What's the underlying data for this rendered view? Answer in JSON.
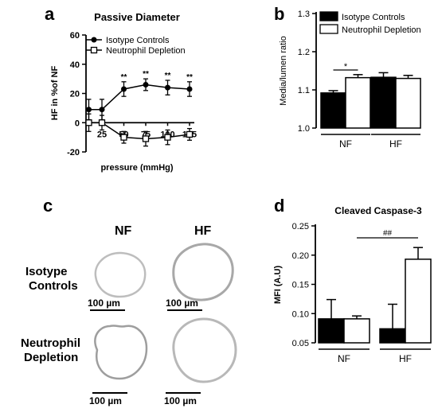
{
  "panel_letters": {
    "a": "a",
    "b": "b",
    "c": "c",
    "d": "d"
  },
  "chart_data": [
    {
      "type": "line",
      "title": "Passive Diameter",
      "xlabel": "pressure (mmHg)",
      "ylabel": "HF in %of NF",
      "x": [
        10,
        25,
        50,
        75,
        100,
        125
      ],
      "x_ticks": [
        "25",
        "50",
        "75",
        "100",
        "125"
      ],
      "ylim": [
        -20,
        60
      ],
      "y_ticks": [
        "-20",
        "0",
        "20",
        "40",
        "60"
      ],
      "legend_position": "top-left",
      "significance_label": "**",
      "series": [
        {
          "name": "Isotype Controls",
          "marker": "filled-circle",
          "values": [
            9,
            9,
            23,
            26,
            24,
            23
          ],
          "errors": [
            7,
            7,
            5,
            4,
            5,
            5
          ],
          "significance": [
            "",
            "",
            "**",
            "**",
            "**",
            "**"
          ]
        },
        {
          "name": "Neutrophil Depletion",
          "marker": "open-square",
          "values": [
            0,
            0,
            -10,
            -11,
            -10,
            -8
          ],
          "errors": [
            6,
            5,
            4,
            5,
            5,
            4
          ]
        }
      ]
    },
    {
      "type": "bar",
      "ylabel": "Media/lumen ratio",
      "categories": [
        "NF",
        "HF"
      ],
      "ylim": [
        1.0,
        1.3
      ],
      "y_ticks": [
        "1.0",
        "1.1",
        "1.2",
        "1.3"
      ],
      "legend_position": "top-right",
      "series": [
        {
          "name": "Isotype Controls",
          "color": "#000000",
          "values": [
            1.092,
            1.133
          ],
          "errors": [
            0.006,
            0.012
          ]
        },
        {
          "name": "Neutrophil Depletion",
          "color": "#ffffff",
          "values": [
            1.132,
            1.13
          ],
          "errors": [
            0.008,
            0.008
          ]
        }
      ],
      "annotations": [
        {
          "text": "*"
        }
      ]
    },
    {
      "type": "bar",
      "title": "Cleaved Caspase-3",
      "ylabel": "MFI (A.U)",
      "categories": [
        "NF",
        "HF"
      ],
      "ylim": [
        0.05,
        0.25
      ],
      "y_ticks": [
        "0.05",
        "0.10",
        "0.15",
        "0.20",
        "0.25"
      ],
      "series": [
        {
          "name": "Isotype Controls",
          "color": "#000000",
          "values": [
            0.091,
            0.074
          ],
          "errors": [
            0.033,
            0.042
          ]
        },
        {
          "name": "Neutrophil Depletion",
          "color": "#ffffff",
          "values": [
            0.091,
            0.193
          ],
          "errors": [
            0.005,
            0.02
          ]
        }
      ],
      "annotations": [
        {
          "text": "##"
        }
      ]
    }
  ],
  "panel_c": {
    "col_labels": [
      "NF",
      "HF"
    ],
    "row_labels": [
      {
        "line1": "Isotype",
        "line2": "Controls"
      },
      {
        "line1": "Neutrophil",
        "line2": "Depletion"
      }
    ],
    "scale_text": "100 µm"
  }
}
